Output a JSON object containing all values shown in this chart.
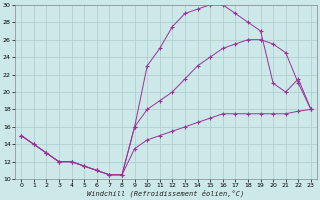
{
  "xlabel": "Windchill (Refroidissement éolien,°C)",
  "bg_color": "#cce8e8",
  "grid_color": "#aacccc",
  "line_color": "#993399",
  "xlim": [
    -0.5,
    23.5
  ],
  "ylim": [
    10,
    30
  ],
  "xticks": [
    0,
    1,
    2,
    3,
    4,
    5,
    6,
    7,
    8,
    9,
    10,
    11,
    12,
    13,
    14,
    15,
    16,
    17,
    18,
    19,
    20,
    21,
    22,
    23
  ],
  "yticks": [
    10,
    12,
    14,
    16,
    18,
    20,
    22,
    24,
    26,
    28,
    30
  ],
  "curve1_x": [
    0,
    1,
    2,
    3,
    4,
    5,
    6,
    7,
    8,
    9,
    10,
    11,
    12,
    13,
    14,
    15,
    16,
    17,
    18,
    19,
    20,
    21,
    22,
    23
  ],
  "curve1_y": [
    15.0,
    14.0,
    13.0,
    12.0,
    12.0,
    11.5,
    11.0,
    10.5,
    10.5,
    16.0,
    23.0,
    25.0,
    27.5,
    29.0,
    29.5,
    30.0,
    30.0,
    29.0,
    28.0,
    27.0,
    21.0,
    20.0,
    21.5,
    18.0
  ],
  "curve2_x": [
    0,
    1,
    2,
    3,
    4,
    5,
    6,
    7,
    8,
    9,
    10,
    11,
    12,
    13,
    14,
    15,
    16,
    17,
    18,
    19,
    20,
    21,
    22,
    23
  ],
  "curve2_y": [
    15.0,
    14.0,
    13.0,
    12.0,
    12.0,
    11.5,
    11.0,
    10.5,
    10.5,
    16.0,
    18.0,
    19.0,
    20.0,
    21.5,
    23.0,
    24.0,
    25.0,
    25.5,
    26.0,
    26.0,
    25.5,
    24.5,
    21.0,
    18.0
  ],
  "curve3_x": [
    0,
    1,
    2,
    3,
    4,
    5,
    6,
    7,
    8,
    9,
    10,
    11,
    12,
    13,
    14,
    15,
    16,
    17,
    18,
    19,
    20,
    21,
    22,
    23
  ],
  "curve3_y": [
    15.0,
    14.0,
    13.0,
    12.0,
    12.0,
    11.5,
    11.0,
    10.5,
    10.5,
    13.5,
    14.5,
    15.0,
    15.5,
    16.0,
    16.5,
    17.0,
    17.5,
    17.5,
    17.5,
    17.5,
    17.5,
    17.5,
    17.8,
    18.0
  ]
}
